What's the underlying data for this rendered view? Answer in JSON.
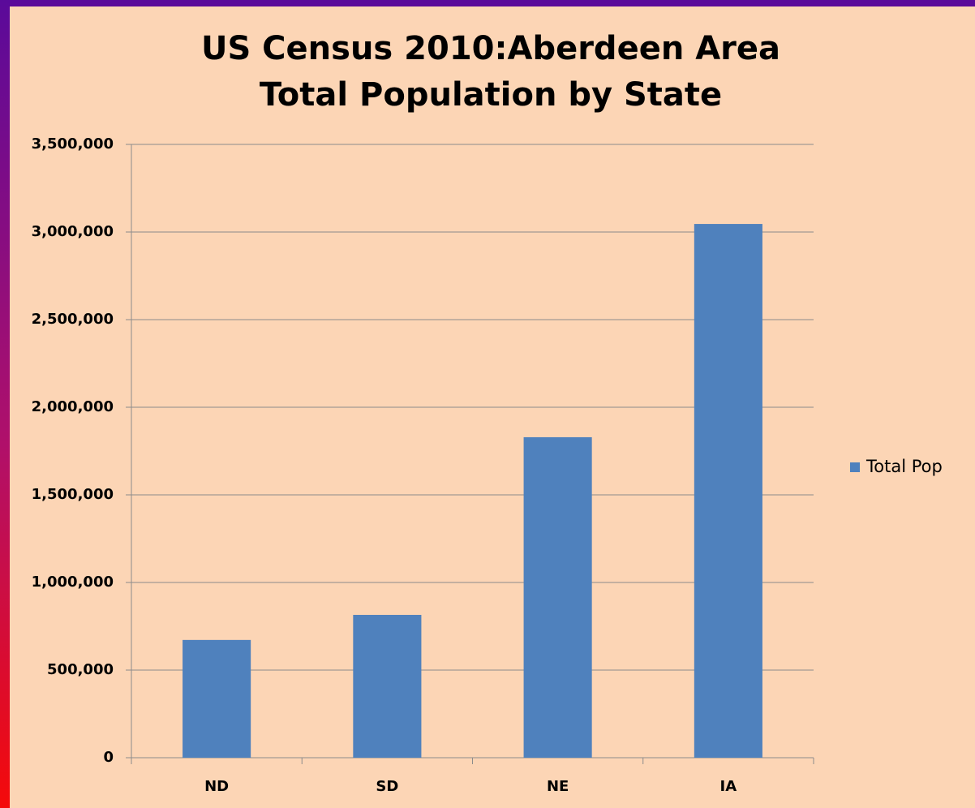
{
  "chart_data": {
    "type": "bar",
    "title": "US Census 2010:Aberdeen Area Total Population by State",
    "categories": [
      "ND",
      "SD",
      "NE",
      "IA"
    ],
    "series": [
      {
        "name": "Total Pop",
        "color": "#4f81bd",
        "values": [
          672000,
          815000,
          1829000,
          3046000
        ]
      }
    ],
    "ylim": [
      0,
      3500000
    ],
    "yticks": [
      0,
      {
        "value": 500000,
        "label": "500,000"
      },
      {
        "value": 1000000,
        "label": "1,000,000"
      },
      {
        "value": 1500000,
        "label": "1,500,000"
      },
      {
        "value": 2000000,
        "label": "2,000,000"
      },
      {
        "value": 2500000,
        "label": "2,500,000"
      },
      {
        "value": 3000000,
        "label": "3,000,000"
      },
      {
        "value": 3500000,
        "label": "3,500,000"
      }
    ],
    "grid": true,
    "legend": "right"
  }
}
